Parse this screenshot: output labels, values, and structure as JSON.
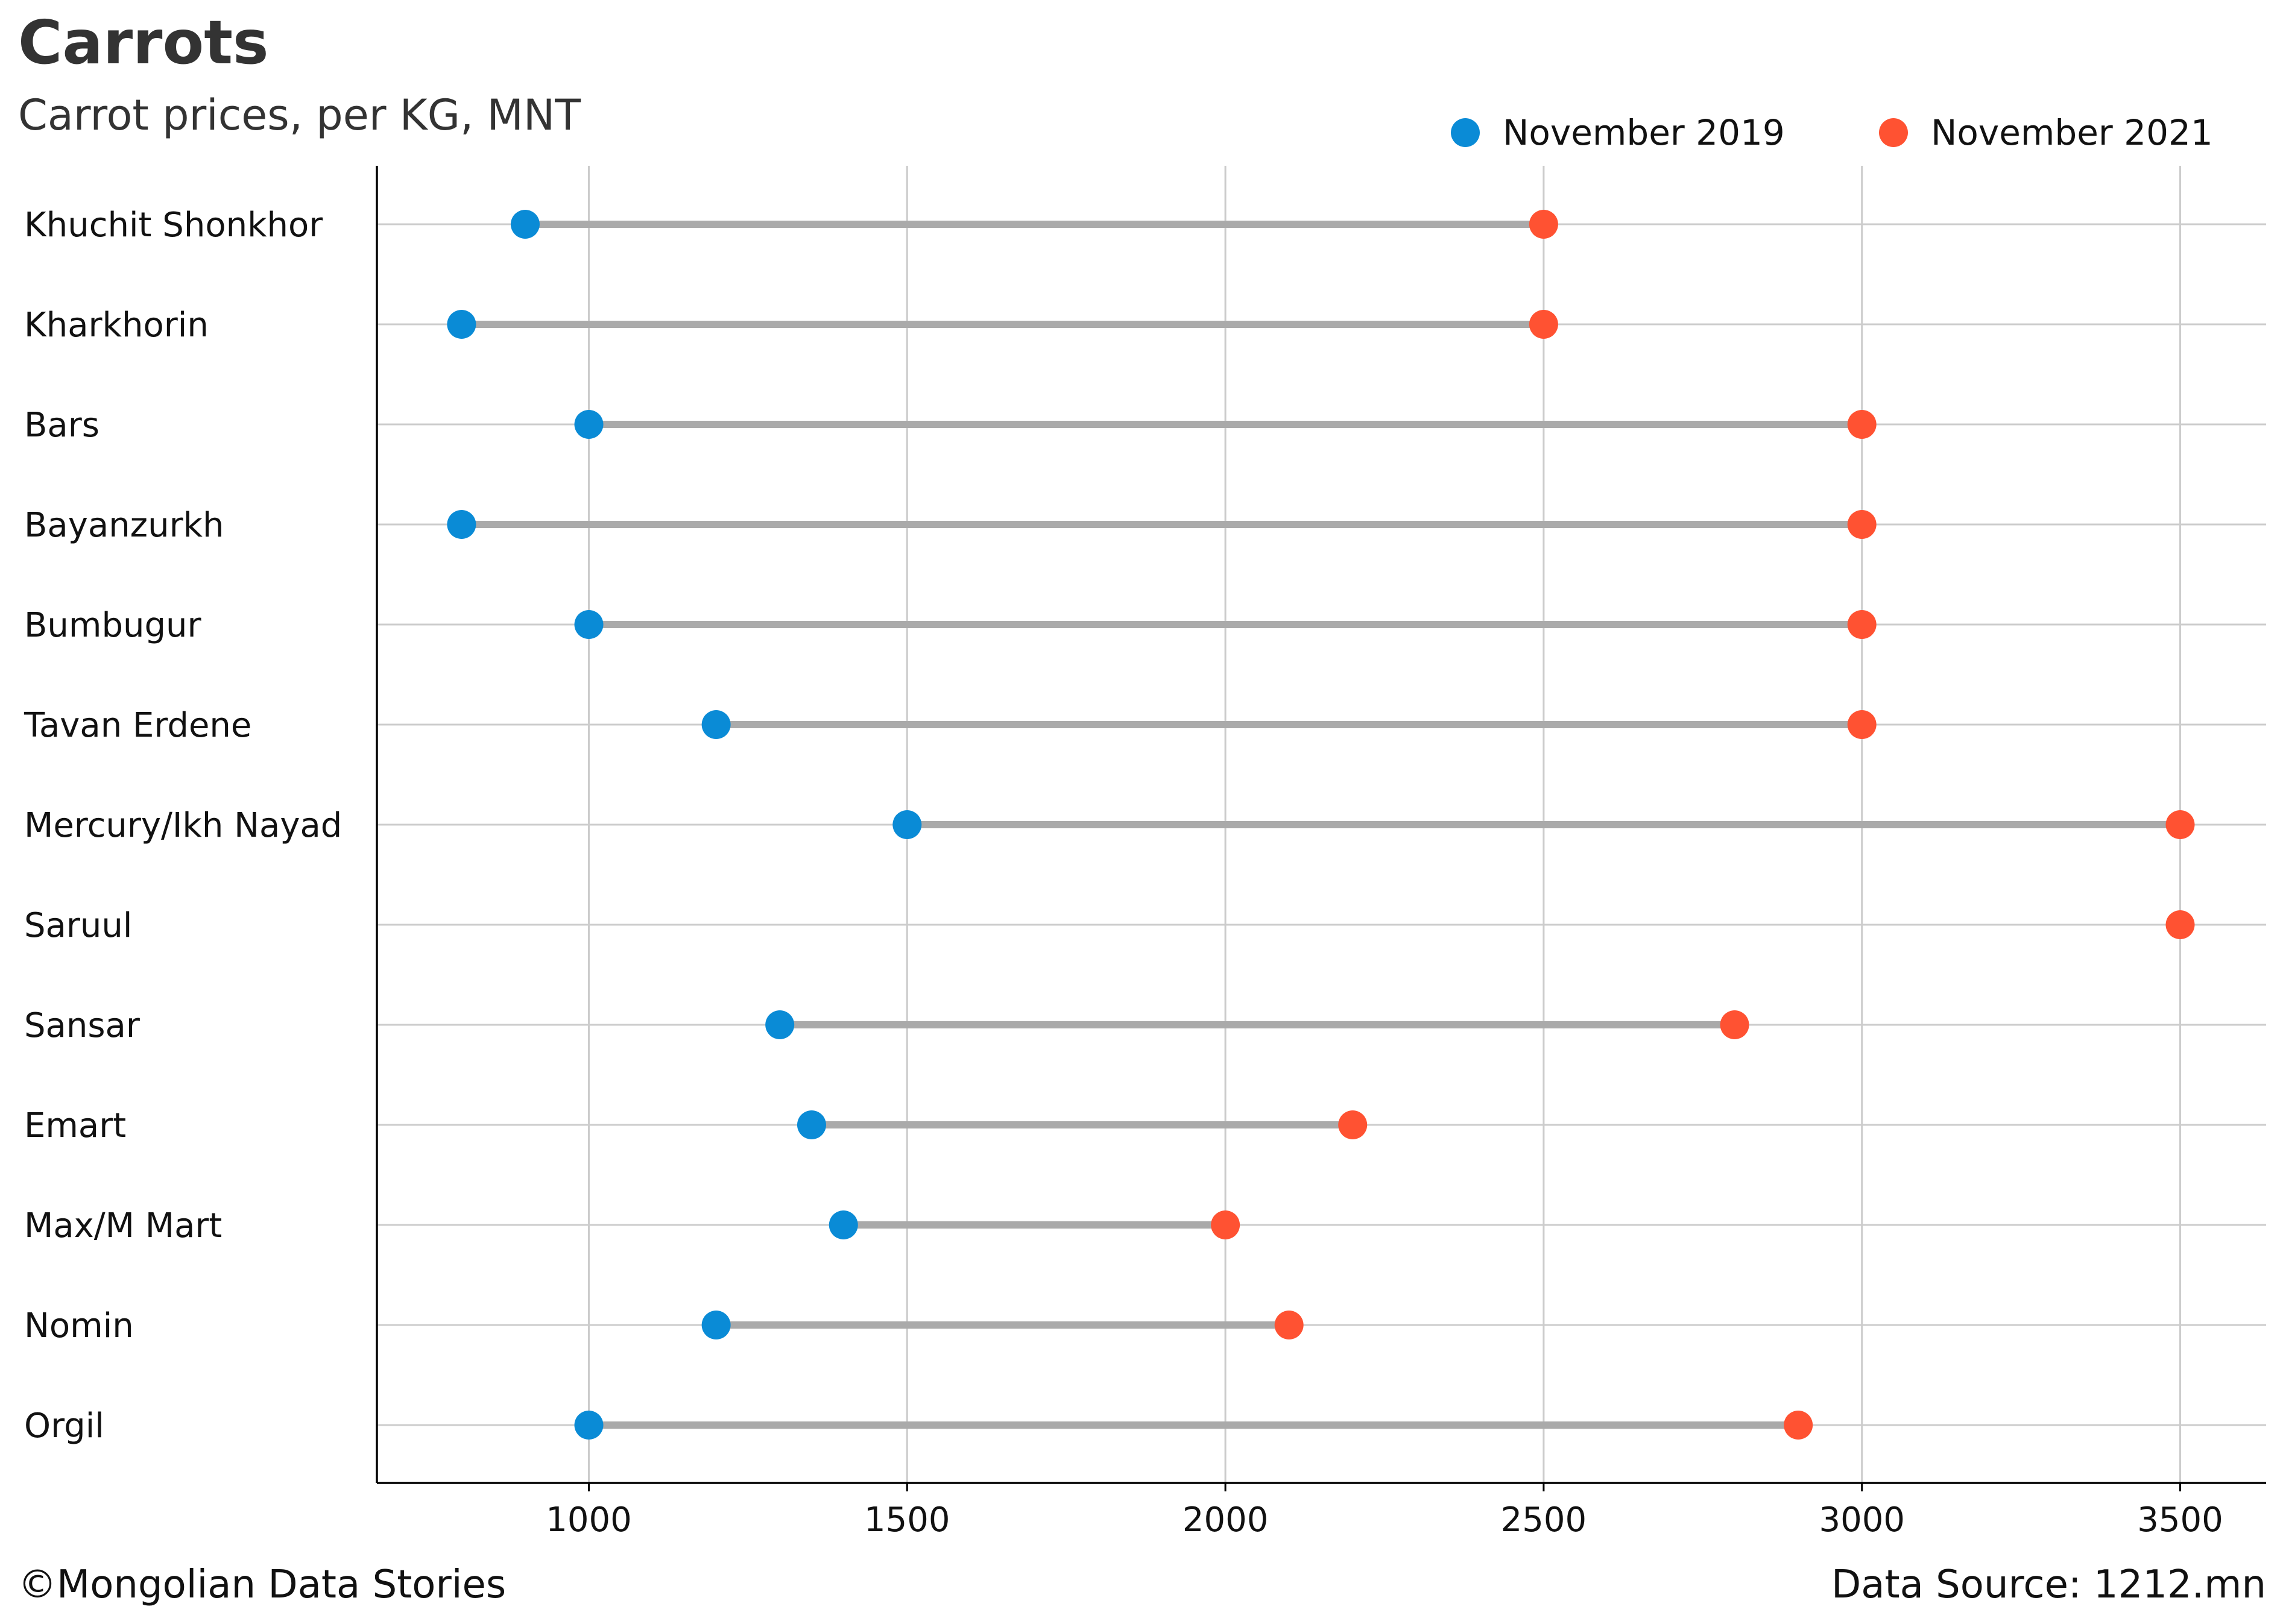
{
  "header": {
    "title": "Carrots",
    "subtitle": "Carrot prices, per KG, MNT"
  },
  "footer": {
    "credit": "©Mongolian Data Stories",
    "source": "Data Source: 1212.mn"
  },
  "chart_data": {
    "type": "dumbbell",
    "title": "Carrots",
    "subtitle": "Carrot prices, per KG, MNT",
    "xlabel": "",
    "ylabel": "",
    "xlim": [
      667,
      3635
    ],
    "xticks": [
      1000,
      1500,
      2000,
      2500,
      3000,
      3500
    ],
    "grid": true,
    "legend_position": "top-right",
    "categories": [
      "Khuchit Shonkhor",
      "Kharkhorin",
      "Bars",
      "Bayanzurkh",
      "Bumbugur",
      "Tavan Erdene",
      "Mercury/Ikh Nayad",
      "Saruul",
      "Sansar",
      "Emart",
      "Max/M Mart",
      "Nomin",
      "Orgil"
    ],
    "series": [
      {
        "name": "November 2019",
        "color": "#0a8bd6",
        "values": [
          900,
          800,
          1000,
          800,
          1000,
          1200,
          1500,
          null,
          1300,
          1350,
          1400,
          1200,
          1000
        ]
      },
      {
        "name": "November 2021",
        "color": "#ff5232",
        "values": [
          2500,
          2500,
          3000,
          3000,
          3000,
          3000,
          3500,
          3500,
          2800,
          2200,
          2000,
          2100,
          2900
        ]
      }
    ],
    "connector_color": "#aaaaaa",
    "grid_color": "#cccccc",
    "axis_color": "#000000"
  }
}
